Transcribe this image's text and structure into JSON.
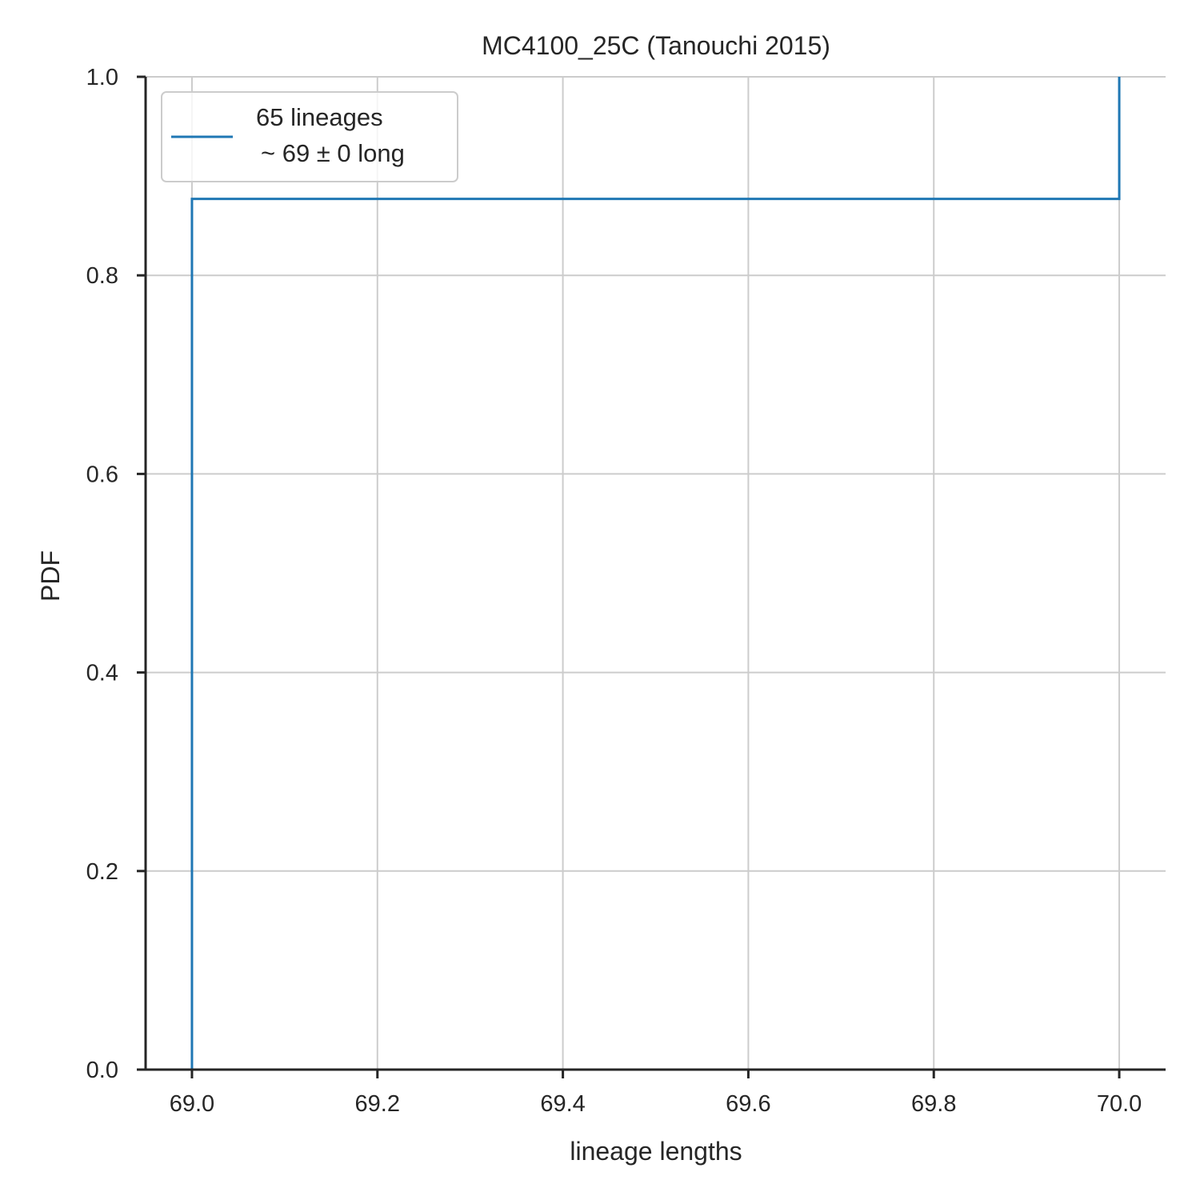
{
  "chart_data": {
    "type": "line",
    "title": "MC4100_25C (Tanouchi 2015)",
    "xlabel": "lineage lengths",
    "ylabel": "PDF",
    "xlim": [
      68.95,
      70.05
    ],
    "ylim": [
      0.0,
      1.0
    ],
    "grid": true,
    "legend_position": "top-left",
    "x_ticks": [
      {
        "value": 69.0,
        "label": "69.0"
      },
      {
        "value": 69.2,
        "label": "69.2"
      },
      {
        "value": 69.4,
        "label": "69.4"
      },
      {
        "value": 69.6,
        "label": "69.6"
      },
      {
        "value": 69.8,
        "label": "69.8"
      },
      {
        "value": 70.0,
        "label": "70.0"
      }
    ],
    "y_ticks": [
      {
        "value": 0.0,
        "label": "0.0"
      },
      {
        "value": 0.2,
        "label": "0.2"
      },
      {
        "value": 0.4,
        "label": "0.4"
      },
      {
        "value": 0.6,
        "label": "0.6"
      },
      {
        "value": 0.8,
        "label": "0.8"
      },
      {
        "value": 1.0,
        "label": "1.0"
      }
    ],
    "series": [
      {
        "name": "65 lineages",
        "legend_line2": "~ 69 ± 0 long",
        "color": "#1f77b4",
        "style": "step",
        "points": [
          {
            "x": 69.0,
            "y": 0.0
          },
          {
            "x": 69.0,
            "y": 0.877
          },
          {
            "x": 70.0,
            "y": 0.877
          },
          {
            "x": 70.0,
            "y": 1.0
          }
        ]
      }
    ]
  }
}
